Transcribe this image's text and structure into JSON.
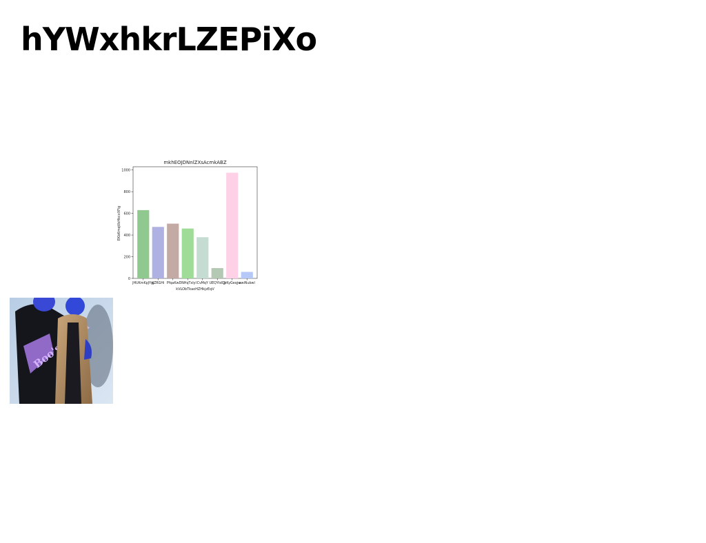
{
  "page": {
    "headline": "hYWxhkrLZEPiXo"
  },
  "chart_data": {
    "type": "bar",
    "title": "mkhEOJDNnlZXsAcmkABZ",
    "xlabel": "kVLObTkaoHZHkjzEqV",
    "ylabel": "EKbKmqVbHkcxXFig",
    "ylim": [
      0,
      1030
    ],
    "yticks": [
      0,
      200,
      400,
      600,
      800,
      1000
    ],
    "categories": [
      "JHUKmKpJYgj",
      "kZRGHi",
      "PfqaKw",
      "DNHqTxIyI",
      "CvMqY",
      "UEQYtdQj",
      "JzKyGeqjw",
      "awiNubwl"
    ],
    "values": [
      630,
      475,
      505,
      460,
      380,
      95,
      975,
      60
    ],
    "colors": [
      "#8fc98f",
      "#aeb1e2",
      "#c3aaa4",
      "#9fdc97",
      "#c5dcd3",
      "#b3c9b3",
      "#ffd1e6",
      "#b5c8f8"
    ],
    "grid": false,
    "legend": "none"
  },
  "photo": {
    "text": "Boo's Wood"
  }
}
